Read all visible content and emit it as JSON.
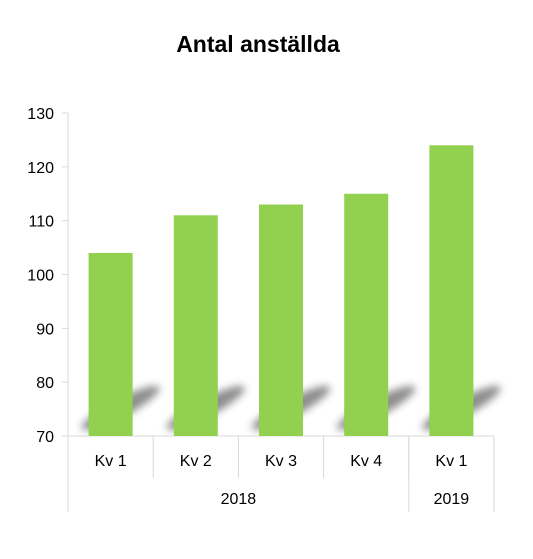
{
  "chart_data": {
    "type": "bar",
    "title": "Antal anställda",
    "xlabel": "",
    "ylabel": "",
    "ylim": [
      70,
      130
    ],
    "yticks": [
      70,
      80,
      90,
      100,
      110,
      120,
      130
    ],
    "grid": false,
    "legend": "none",
    "categories": [
      "Kv 1",
      "Kv 2",
      "Kv 3",
      "Kv 4",
      "Kv 1"
    ],
    "groups": [
      {
        "label": "2018",
        "count": 4
      },
      {
        "label": "2019",
        "count": 1
      }
    ],
    "series": [
      {
        "values": [
          104,
          111,
          113,
          115,
          124
        ],
        "color": "#92d050"
      }
    ]
  }
}
